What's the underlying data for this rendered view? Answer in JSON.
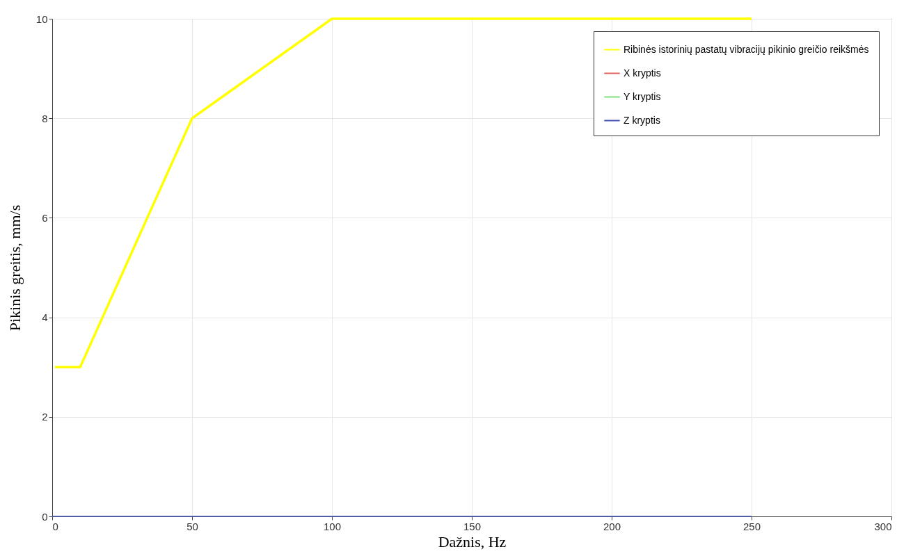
{
  "chart_data": {
    "type": "line",
    "xlabel": "Dažnis, Hz",
    "ylabel": "Pikinis greitis, mm/s",
    "xlim": [
      0,
      300
    ],
    "xticks": [
      0,
      50,
      100,
      150,
      200,
      250,
      300
    ],
    "ylim": [
      0,
      10
    ],
    "yticks": [
      0,
      2,
      4,
      6,
      8,
      10
    ],
    "grid": true,
    "legend": "top right",
    "line_style": "solid",
    "marker": "none",
    "series": [
      {
        "name": "Ribinės istorinių pastatų vibracijų pikinio greičio reikšmės",
        "color": "#ffff00",
        "x": [
          1,
          10,
          50,
          100,
          250
        ],
        "values": [
          3,
          3,
          8,
          10,
          10
        ]
      },
      {
        "name": "X kryptis",
        "color": "#e06060"
      },
      {
        "name": "Y kryptis",
        "color": "#80e080"
      },
      {
        "name": "Z kryptis",
        "color": "#4050b0",
        "x": [
          0,
          250
        ],
        "values": [
          0,
          0
        ]
      }
    ]
  }
}
